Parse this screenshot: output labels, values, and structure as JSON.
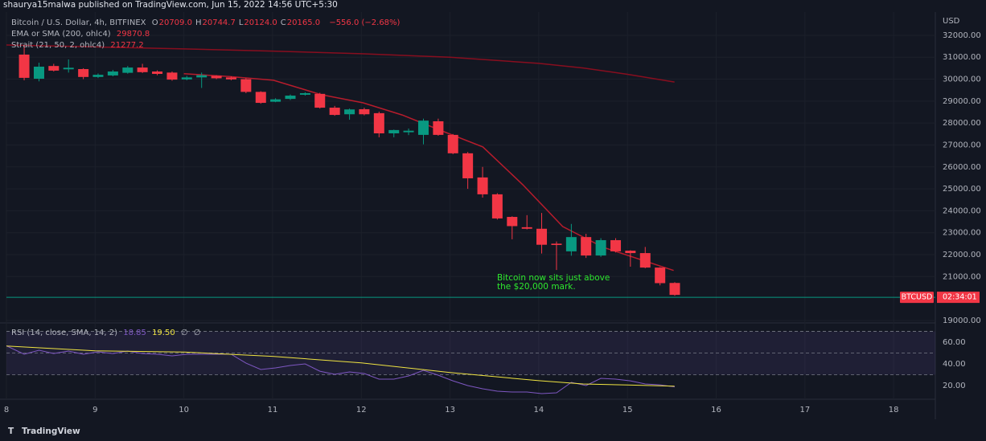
{
  "header": {
    "publisher_line": "shaurya15malwa published on TradingView.com, Jun 15, 2022 14:56 UTC+5:30"
  },
  "footer": {
    "brand": "TradingView"
  },
  "chart_data": [
    {
      "type": "candlestick",
      "symbol_title": "Bitcoin / U.S. Dollar, 4h, BITFINEX",
      "ohlc_legend": [
        {
          "label": "O",
          "value": "20709.0"
        },
        {
          "label": "H",
          "value": "20744.7"
        },
        {
          "label": "L",
          "value": "20124.0"
        },
        {
          "label": "C",
          "value": "20165.0"
        }
      ],
      "change_label": "−556.0 (−2.68%)",
      "currency": "USD",
      "badge": {
        "symbol": "BTCUSD",
        "countdown": "02:34:01"
      },
      "annotation": [
        "Bitcoin now sits just above",
        "the $20,000 mark."
      ],
      "up_color": "#089981",
      "down_color": "#f23645",
      "price_line_color": "#089981",
      "x": [
        8.2,
        8.367,
        8.533,
        8.7,
        8.867,
        9.033,
        9.2,
        9.367,
        9.533,
        9.7,
        9.867,
        10.033,
        10.2,
        10.367,
        10.533,
        10.7,
        10.867,
        11.033,
        11.2,
        11.367,
        11.533,
        11.7,
        11.867,
        12.033,
        12.2,
        12.367,
        12.533,
        12.7,
        12.867,
        13.033,
        13.2,
        13.367,
        13.533,
        13.7,
        13.867,
        14.033,
        14.2,
        14.367,
        14.533,
        14.7,
        14.867,
        15.033,
        15.2,
        15.367,
        15.533
      ],
      "open": [
        31120,
        30020,
        30600,
        30450,
        30460,
        30100,
        30170,
        30290,
        30530,
        30350,
        30300,
        29990,
        30080,
        30150,
        30080,
        30000,
        29420,
        28970,
        29100,
        29290,
        29330,
        28700,
        28400,
        28630,
        28450,
        27530,
        27580,
        27460,
        28080,
        27460,
        26620,
        25520,
        24750,
        23720,
        23250,
        23180,
        22500,
        22150,
        22800,
        21960,
        22660,
        22180,
        22070,
        21410,
        20709
      ],
      "high": [
        31550,
        30750,
        30700,
        30900,
        30500,
        30260,
        30420,
        30600,
        30700,
        30400,
        30350,
        30150,
        30300,
        30180,
        30130,
        30050,
        29450,
        29130,
        29300,
        29400,
        29380,
        28780,
        28660,
        28700,
        28520,
        27700,
        27750,
        28200,
        28200,
        27500,
        26680,
        26000,
        24800,
        23750,
        23800,
        23900,
        22600,
        23400,
        22950,
        22750,
        22750,
        22200,
        22350,
        21430,
        20744.7
      ],
      "low": [
        29950,
        29900,
        30350,
        30300,
        30000,
        30050,
        30130,
        30250,
        30280,
        30180,
        29930,
        29950,
        29600,
        30000,
        29950,
        29360,
        28880,
        28950,
        29050,
        29250,
        28660,
        28330,
        28150,
        28350,
        27350,
        27350,
        27450,
        27030,
        27420,
        26580,
        25000,
        24600,
        23600,
        22700,
        23150,
        22050,
        21300,
        21950,
        21850,
        21900,
        22100,
        21450,
        21380,
        20600,
        20124
      ],
      "close": [
        30060,
        30570,
        30390,
        30520,
        30100,
        30200,
        30350,
        30530,
        30320,
        30240,
        29980,
        30080,
        30180,
        30040,
        29990,
        29420,
        28920,
        29080,
        29250,
        29360,
        28700,
        28370,
        28620,
        28400,
        27530,
        27680,
        27650,
        28110,
        27460,
        26620,
        25480,
        24750,
        23650,
        23300,
        23180,
        22450,
        22440,
        22800,
        21960,
        22660,
        22150,
        22070,
        21410,
        20700,
        20165
      ],
      "lines": [
        {
          "name": "EMA or SMA (200, ohlc4)",
          "color": "#880e1f",
          "last_value_label": "29870.8",
          "x": [
            8.0,
            9.0,
            10.0,
            11.0,
            12.0,
            13.0,
            14.0,
            14.5,
            15.0,
            15.53
          ],
          "values": [
            31560,
            31470,
            31380,
            31280,
            31160,
            31000,
            30720,
            30510,
            30220,
            29870.8
          ]
        },
        {
          "name": "Strait (21, 50, 2, ohlc4)",
          "color": "#b71c2c",
          "last_value_label": "21277.2",
          "x": [
            10.0,
            10.51,
            11.01,
            11.55,
            12.02,
            12.46,
            12.91,
            13.37,
            13.82,
            14.27,
            14.73,
            15.52
          ],
          "values": [
            30250,
            30120,
            29950,
            29290,
            28920,
            28370,
            27640,
            26910,
            25190,
            23280,
            22330,
            21277.2
          ]
        }
      ],
      "xlim": [
        8,
        18.47
      ],
      "xticks": [
        8,
        9,
        10,
        11,
        12,
        13,
        14,
        15,
        16,
        17,
        18
      ],
      "ylim": [
        18960,
        33060
      ],
      "yticks": [
        {
          "value": 32000,
          "label": "32000.00"
        },
        {
          "value": 31000,
          "label": "31000.00"
        },
        {
          "value": 30000,
          "label": "30000.00"
        },
        {
          "value": 29000,
          "label": "29000.00"
        },
        {
          "value": 28000,
          "label": "28000.00"
        },
        {
          "value": 27000,
          "label": "27000.00"
        },
        {
          "value": 26000,
          "label": "26000.00"
        },
        {
          "value": 25000,
          "label": "25000.00"
        },
        {
          "value": 24000,
          "label": "24000.00"
        },
        {
          "value": 23000,
          "label": "23000.00"
        },
        {
          "value": 22000,
          "label": "22000.00"
        },
        {
          "value": 21000,
          "label": "21000.00"
        },
        {
          "value": 19000,
          "label": "19000.00"
        }
      ],
      "grid": true
    },
    {
      "type": "line",
      "title": "RSI (14, close, SMA, 14, 2)",
      "extra_labels": [
        "∅",
        "∅"
      ],
      "band": [
        30,
        70
      ],
      "levels": [
        70,
        50,
        30
      ],
      "series": [
        {
          "name": "RSI",
          "color": "#7e57c2",
          "value_label": "18.85",
          "x": [
            8.0,
            8.2,
            8.367,
            8.533,
            8.7,
            8.867,
            9.033,
            9.2,
            9.367,
            9.533,
            9.7,
            9.867,
            10.033,
            10.2,
            10.367,
            10.533,
            10.7,
            10.867,
            11.033,
            11.2,
            11.367,
            11.533,
            11.7,
            11.867,
            12.033,
            12.2,
            12.367,
            12.533,
            12.7,
            12.867,
            13.033,
            13.2,
            13.367,
            13.533,
            13.7,
            13.867,
            14.033,
            14.2,
            14.367,
            14.533,
            14.7,
            14.867,
            15.033,
            15.2,
            15.367,
            15.533
          ],
          "values": [
            56.7,
            48.9,
            52.6,
            49.6,
            51.9,
            48.9,
            51.1,
            49.6,
            51.9,
            49.6,
            48.9,
            47.4,
            48.9,
            48.9,
            48.9,
            48.9,
            40.7,
            34.8,
            36.3,
            38.5,
            40.0,
            33.3,
            30.4,
            32.6,
            31.1,
            25.9,
            25.9,
            28.9,
            34.1,
            29.6,
            24.4,
            20.0,
            17.0,
            14.8,
            14.1,
            14.1,
            12.6,
            13.3,
            23.0,
            20.0,
            26.7,
            25.9,
            24.4,
            21.5,
            20.7,
            18.85
          ]
        },
        {
          "name": "RSI-based MA",
          "color": "#f0e442",
          "value_label": "19.50",
          "x": [
            8.0,
            9.0,
            10.0,
            11.0,
            12.0,
            13.0,
            14.0,
            14.5,
            15.0,
            15.53
          ],
          "values": [
            56.5,
            52,
            51,
            47,
            41,
            32,
            24.5,
            21.5,
            20.5,
            19.5
          ]
        }
      ],
      "xlim": [
        8,
        18.47
      ],
      "ylim": [
        7.4,
        75.6
      ],
      "yticks": [
        {
          "value": 60,
          "label": "60.00"
        },
        {
          "value": 40,
          "label": "40.00"
        },
        {
          "value": 20,
          "label": "20.00"
        }
      ]
    }
  ]
}
